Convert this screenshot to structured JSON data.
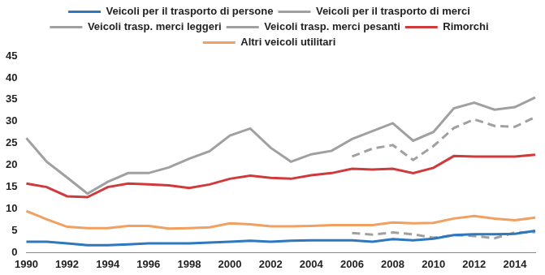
{
  "chart_data": {
    "type": "line",
    "categories": [
      "1990",
      null,
      "1992",
      null,
      "1994",
      null,
      "1996",
      null,
      "1998",
      null,
      "2000",
      null,
      "2002",
      null,
      "2004",
      null,
      "2006",
      null,
      "2008",
      null,
      "2010",
      null,
      "2012",
      null,
      "2014",
      null
    ],
    "series": [
      {
        "name": "Veicoli per il trasporto di persone",
        "color": "#2e78bd",
        "line_style": "solid",
        "values": [
          2.5,
          2.5,
          2.1,
          1.7,
          1.7,
          1.9,
          2.1,
          2.1,
          2.1,
          2.3,
          2.5,
          2.7,
          2.5,
          2.7,
          2.8,
          2.8,
          2.8,
          2.5,
          3.1,
          2.8,
          3.2,
          4.0,
          4.2,
          4.2,
          4.3,
          5.0
        ]
      },
      {
        "name": "Veicoli per il trasporto di merci",
        "color": "#a0a0a0",
        "line_style": "solid",
        "values": [
          26.2,
          20.8,
          17.2,
          13.5,
          16.2,
          18.2,
          18.2,
          19.5,
          21.5,
          23.2,
          26.8,
          28.4,
          24.0,
          20.8,
          22.5,
          23.3,
          26.0,
          27.8,
          29.6,
          25.6,
          27.6,
          33.0,
          34.3,
          32.7,
          33.3,
          35.5
        ]
      },
      {
        "name": "Veicoli trasp. merci leggeri",
        "color": "#a0a0a0",
        "line_style": "dashed",
        "values": [
          null,
          null,
          null,
          null,
          null,
          null,
          null,
          null,
          null,
          null,
          null,
          null,
          null,
          null,
          null,
          null,
          22.0,
          23.8,
          24.6,
          21.2,
          24.4,
          28.5,
          30.5,
          29.0,
          28.8,
          31.0
        ]
      },
      {
        "name": "Veicoli trasp. merci pesanti",
        "color": "#a0a0a0",
        "line_style": "dashed",
        "values": [
          null,
          null,
          null,
          null,
          null,
          null,
          null,
          null,
          null,
          null,
          null,
          null,
          null,
          null,
          null,
          null,
          4.5,
          4.1,
          4.6,
          4.2,
          3.4,
          4.0,
          3.8,
          3.3,
          4.6,
          4.7
        ]
      },
      {
        "name": "Rimorchi",
        "color": "#d03a3a",
        "line_style": "solid",
        "values": [
          15.8,
          15.0,
          12.9,
          12.7,
          15.0,
          15.8,
          15.6,
          15.4,
          14.8,
          15.6,
          16.9,
          17.6,
          17.1,
          16.9,
          17.7,
          18.2,
          19.2,
          19.0,
          19.2,
          18.2,
          19.4,
          22.1,
          22.0,
          22.0,
          22.0,
          22.4
        ]
      },
      {
        "name": "Altri veicoli utilitari",
        "color": "#f0a060",
        "line_style": "solid",
        "values": [
          9.5,
          7.6,
          5.9,
          5.6,
          5.6,
          6.1,
          6.1,
          5.5,
          5.6,
          5.8,
          6.7,
          6.5,
          6.0,
          6.0,
          6.1,
          6.3,
          6.3,
          6.3,
          6.9,
          6.7,
          6.8,
          7.8,
          8.4,
          7.8,
          7.4,
          8.0
        ]
      }
    ],
    "ylim": [
      0,
      45
    ],
    "yticks": [
      0,
      5,
      10,
      15,
      20,
      25,
      30,
      35,
      40,
      45
    ],
    "grid": false,
    "legend": "top"
  }
}
